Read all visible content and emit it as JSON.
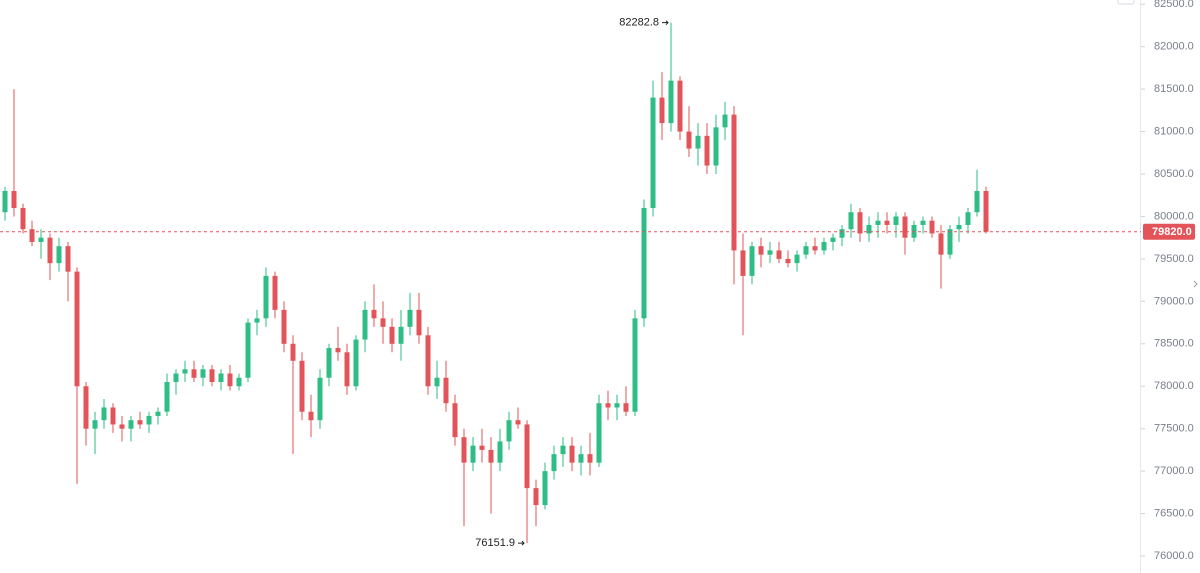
{
  "chart_data": {
    "type": "candlestick",
    "up_color": "#2ebd85",
    "down_color": "#e2545a",
    "ylim": [
      75800,
      82550
    ],
    "yticks": [
      {
        "value": 76000,
        "label": "76000.0"
      },
      {
        "value": 76500,
        "label": "76500.0"
      },
      {
        "value": 77000,
        "label": "77000.0"
      },
      {
        "value": 77500,
        "label": "77500.0"
      },
      {
        "value": 78000,
        "label": "78000.0"
      },
      {
        "value": 78500,
        "label": "78500.0"
      },
      {
        "value": 79000,
        "label": "79000.0"
      },
      {
        "value": 79500,
        "label": "79500.0"
      },
      {
        "value": 80000,
        "label": "80000.0"
      },
      {
        "value": 80500,
        "label": "80500.0"
      },
      {
        "value": 81000,
        "label": "81000.0"
      },
      {
        "value": 81500,
        "label": "81500.0"
      },
      {
        "value": 82000,
        "label": "82000.0"
      },
      {
        "value": 82500,
        "label": "82500.0"
      }
    ],
    "price_line": {
      "value": 79820,
      "label": "79820.0",
      "color": "#e2545a"
    },
    "annotations": [
      {
        "index": 74,
        "value": 82282.8,
        "label": "82282.8",
        "position": "above"
      },
      {
        "index": 58,
        "value": 76151.9,
        "label": "76151.9",
        "position": "below"
      }
    ],
    "open": [
      80050,
      80300,
      80100,
      79850,
      79700,
      79750,
      79450,
      79650,
      79350,
      78000,
      77500,
      77600,
      77750,
      77550,
      77500,
      77600,
      77550,
      77650,
      77700,
      78050,
      78150,
      78200,
      78100,
      78200,
      78050,
      78150,
      78000,
      78100,
      78750,
      78800,
      79300,
      78900,
      78500,
      78300,
      77700,
      77600,
      78100,
      78450,
      78400,
      78000,
      78550,
      78900,
      78800,
      78700,
      78500,
      78700,
      78900,
      78600,
      78000,
      78100,
      77800,
      77400,
      77100,
      77300,
      77250,
      77100,
      77350,
      77600,
      77550,
      76800,
      76600,
      77000,
      77200,
      77300,
      77100,
      77200,
      77100,
      77800,
      77750,
      77800,
      77700,
      78800,
      80100,
      81400,
      81100,
      81600,
      81000,
      80800,
      80950,
      80600,
      81050,
      81200,
      79600,
      79300,
      79650,
      79550,
      79600,
      79500,
      79450,
      79550,
      79650,
      79600,
      79700,
      79750,
      79850,
      80050,
      79800,
      79900,
      79950,
      79900,
      80000,
      79750,
      79900,
      79950,
      79800,
      79550,
      79850,
      79900,
      80050,
      80300
    ],
    "high": [
      80350,
      81500,
      80150,
      79950,
      79850,
      79800,
      79750,
      79700,
      79400,
      78050,
      77700,
      77850,
      77800,
      77650,
      77650,
      77700,
      77700,
      77750,
      78150,
      78200,
      78300,
      78300,
      78250,
      78250,
      78200,
      78250,
      78150,
      78800,
      78900,
      79400,
      79350,
      79000,
      78600,
      78400,
      77900,
      78200,
      78500,
      78700,
      78500,
      78600,
      79000,
      79200,
      79000,
      78800,
      78900,
      79100,
      79100,
      78700,
      78300,
      78300,
      77900,
      77500,
      77400,
      77500,
      77400,
      77500,
      77700,
      77750,
      77600,
      76900,
      77100,
      77300,
      77400,
      77400,
      77300,
      77450,
      77900,
      77950,
      77900,
      78000,
      78900,
      80200,
      81600,
      81700,
      82282.8,
      81650,
      81300,
      81100,
      81100,
      81200,
      81350,
      81300,
      79800,
      79700,
      79750,
      79700,
      79700,
      79600,
      79600,
      79700,
      79750,
      79750,
      79800,
      79900,
      80150,
      80100,
      80000,
      80050,
      80050,
      80050,
      80050,
      79950,
      80000,
      80000,
      79900,
      79900,
      80000,
      80100,
      80550,
      80350
    ],
    "low": [
      79950,
      80000,
      79800,
      79650,
      79500,
      79250,
      79350,
      79000,
      76850,
      77300,
      77200,
      77500,
      77450,
      77350,
      77350,
      77500,
      77450,
      77550,
      77650,
      77900,
      78050,
      78050,
      78000,
      78000,
      77950,
      77950,
      77950,
      78050,
      78600,
      78700,
      78800,
      78400,
      77200,
      77600,
      77400,
      77500,
      78000,
      78300,
      77900,
      77950,
      78400,
      78700,
      78500,
      78400,
      78300,
      78600,
      78500,
      77900,
      77850,
      77700,
      77300,
      76350,
      77000,
      77100,
      76500,
      77000,
      77250,
      77500,
      76151.9,
      76350,
      76550,
      76900,
      77050,
      77000,
      76950,
      76950,
      77050,
      77600,
      77600,
      77650,
      77650,
      78700,
      80000,
      80900,
      81000,
      80900,
      80700,
      80600,
      80500,
      80500,
      80900,
      79200,
      78600,
      79200,
      79400,
      79450,
      79450,
      79400,
      79350,
      79500,
      79550,
      79550,
      79600,
      79650,
      79750,
      79700,
      79700,
      79750,
      79800,
      79750,
      79550,
      79700,
      79800,
      79750,
      79150,
      79500,
      79700,
      79800,
      80000,
      79800
    ],
    "close": [
      80300,
      80100,
      79850,
      79700,
      79750,
      79450,
      79650,
      79350,
      78000,
      77500,
      77600,
      77750,
      77550,
      77500,
      77600,
      77550,
      77650,
      77700,
      78050,
      78150,
      78200,
      78100,
      78200,
      78050,
      78150,
      78000,
      78100,
      78750,
      78800,
      79300,
      78900,
      78500,
      78300,
      77700,
      77600,
      78100,
      78450,
      78400,
      78000,
      78550,
      78900,
      78800,
      78700,
      78500,
      78700,
      78900,
      78600,
      78000,
      78100,
      77800,
      77400,
      77100,
      77300,
      77250,
      77100,
      77350,
      77600,
      77550,
      76800,
      76600,
      77000,
      77200,
      77300,
      77100,
      77200,
      77100,
      77800,
      77750,
      77800,
      77700,
      78800,
      80100,
      81400,
      81100,
      81600,
      81000,
      80800,
      80950,
      80600,
      81050,
      81200,
      79600,
      79300,
      79650,
      79550,
      79600,
      79500,
      79450,
      79550,
      79650,
      79600,
      79700,
      79750,
      79850,
      80050,
      79800,
      79900,
      79950,
      79900,
      80000,
      79750,
      79900,
      79950,
      79800,
      79550,
      79850,
      79900,
      80050,
      80300,
      79820
    ]
  }
}
